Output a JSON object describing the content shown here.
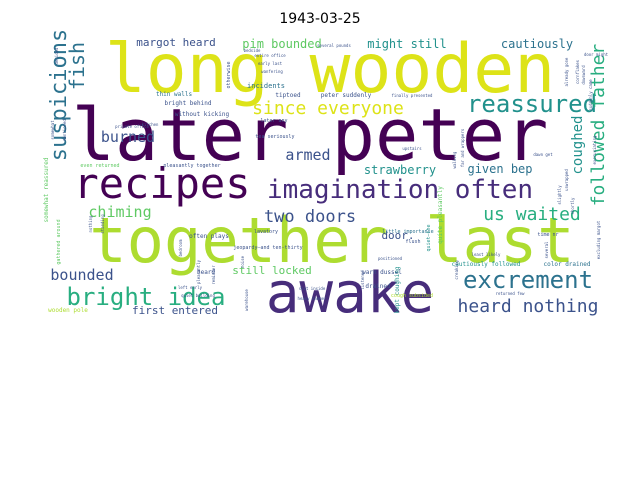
{
  "title": "1943-03-25",
  "colors": {
    "dark_purple": "#440154",
    "indigo": "#472d7b",
    "slate": "#3b528b",
    "blue": "#2c728e",
    "teal": "#21918c",
    "green_teal": "#28ae80",
    "green": "#5ec962",
    "lime": "#addc30",
    "yellow": "#dde318"
  },
  "words": [
    {
      "text": "long wooden",
      "color": "yellow"
    },
    {
      "text": "later peter",
      "color": "dark_purple"
    },
    {
      "text": "together last",
      "color": "lime"
    },
    {
      "text": "awake",
      "color": "indigo"
    },
    {
      "text": "recipes",
      "color": "dark_purple"
    },
    {
      "text": "imagination often",
      "color": "indigo"
    },
    {
      "text": "reassured",
      "color": "teal"
    },
    {
      "text": "excrement",
      "color": "blue"
    },
    {
      "text": "bright idea",
      "color": "green_teal"
    },
    {
      "text": "since everyone",
      "color": "yellow"
    },
    {
      "text": "suspicions",
      "color": "blue"
    },
    {
      "text": "followed father",
      "color": "green_teal"
    },
    {
      "text": "heard nothing",
      "color": "slate"
    },
    {
      "text": "us waited",
      "color": "green_teal"
    },
    {
      "text": "two doors",
      "color": "slate"
    },
    {
      "text": "bounded",
      "color": "slate"
    },
    {
      "text": "fish",
      "color": "blue"
    },
    {
      "text": "burned",
      "color": "slate"
    },
    {
      "text": "armed",
      "color": "slate"
    },
    {
      "text": "coughed",
      "color": "teal"
    },
    {
      "text": "chiming",
      "color": "green"
    },
    {
      "text": "strawberry",
      "color": "teal"
    },
    {
      "text": "given bep",
      "color": "blue"
    },
    {
      "text": "pim bounded",
      "color": "green"
    },
    {
      "text": "might still",
      "color": "teal"
    },
    {
      "text": "cautiously",
      "color": "blue"
    },
    {
      "text": "margot heard",
      "color": "slate"
    },
    {
      "text": "still locked",
      "color": "green"
    },
    {
      "text": "first entered",
      "color": "slate"
    },
    {
      "text": "door.",
      "color": "slate"
    },
    {
      "text": "incidents",
      "color": "blue"
    },
    {
      "text": "thin walls",
      "color": "blue"
    },
    {
      "text": "without kicking",
      "color": "slate"
    },
    {
      "text": "bright behind",
      "color": "slate"
    },
    {
      "text": "peter suddenly",
      "color": "slate"
    },
    {
      "text": "tiptoed",
      "color": "slate"
    },
    {
      "text": "somewhat reassured",
      "color": "green"
    },
    {
      "text": "wooden pole",
      "color": "lime"
    },
    {
      "text": "heard",
      "color": "slate"
    },
    {
      "text": "drained",
      "color": "slate"
    },
    {
      "text": "warn dussel",
      "color": "slate"
    },
    {
      "text": "flush",
      "color": "slate"
    },
    {
      "text": "time nr",
      "color": "slate"
    },
    {
      "text": "kept coughing",
      "color": "teal"
    },
    {
      "text": "quite pleasantly",
      "color": "green"
    },
    {
      "text": "cautiously followed",
      "color": "teal"
    },
    {
      "text": "color drained",
      "color": "blue"
    },
    {
      "text": "cough subsided",
      "color": "lime"
    },
    {
      "text": "often plays",
      "color": "slate"
    },
    {
      "text": "jeopardy—and ten-thirty",
      "color": "slate"
    },
    {
      "text": "little importance",
      "color": "blue"
    },
    {
      "text": "even returned",
      "color": "green"
    },
    {
      "text": "pleasantly together",
      "color": "slate"
    },
    {
      "text": "gathered around",
      "color": "green"
    },
    {
      "text": "quiet—the",
      "color": "teal"
    },
    {
      "text": "lavatory",
      "color": "slate"
    },
    {
      "text": "left early",
      "color": "slate"
    },
    {
      "text": "quiet building",
      "color": "slate"
    },
    {
      "text": "shut inside",
      "color": "slate"
    },
    {
      "text": "heavy hammer",
      "color": "slate"
    },
    {
      "text": "positioned",
      "color": "slate"
    },
    {
      "text": "least likely",
      "color": "slate"
    },
    {
      "text": "dawn get",
      "color": "slate"
    },
    {
      "text": "returned few",
      "color": "slate"
    },
    {
      "text": "early last",
      "color": "slate"
    },
    {
      "text": "entire office",
      "color": "slate"
    },
    {
      "text": "bedside",
      "color": "slate"
    },
    {
      "text": "wanfering",
      "color": "slate"
    },
    {
      "text": "several pounds",
      "color": "slate"
    },
    {
      "text": "finally presented",
      "color": "slate"
    },
    {
      "text": "tea seriously",
      "color": "slate"
    },
    {
      "text": "later any",
      "color": "slate"
    },
    {
      "text": "otherwise",
      "color": "slate"
    },
    {
      "text": "already gone",
      "color": "slate"
    },
    {
      "text": "cornflakes",
      "color": "slate"
    },
    {
      "text": "downward",
      "color": "slate"
    },
    {
      "text": "suddenly came",
      "color": "slate"
    },
    {
      "text": "excruciating",
      "color": "slate"
    },
    {
      "text": "slightly",
      "color": "slate"
    },
    {
      "text": "unwrapped",
      "color": "slate"
    },
    {
      "text": "far and wrappers",
      "color": "slate"
    },
    {
      "text": "walking",
      "color": "slate"
    },
    {
      "text": "pleasantly",
      "color": "slate"
    },
    {
      "text": "reminder",
      "color": "slate"
    },
    {
      "text": "excluding margot",
      "color": "slate"
    },
    {
      "text": "door might",
      "color": "slate"
    },
    {
      "text": "standing",
      "color": "slate"
    },
    {
      "text": "nothing",
      "color": "slate"
    },
    {
      "text": "decided",
      "color": "slate"
    },
    {
      "text": "somewhat",
      "color": "slate"
    },
    {
      "text": "mentioned",
      "color": "slate"
    },
    {
      "text": "creaking",
      "color": "slate"
    },
    {
      "text": "listened",
      "color": "slate"
    },
    {
      "text": "several",
      "color": "slate"
    },
    {
      "text": "noise",
      "color": "slate"
    },
    {
      "text": "shortly",
      "color": "slate"
    },
    {
      "text": "bedroom",
      "color": "slate"
    },
    {
      "text": "warehouse",
      "color": "slate"
    },
    {
      "text": "upstairs",
      "color": "slate"
    },
    {
      "text": "kitchen",
      "color": "slate"
    },
    {
      "text": "private office",
      "color": "slate"
    }
  ]
}
